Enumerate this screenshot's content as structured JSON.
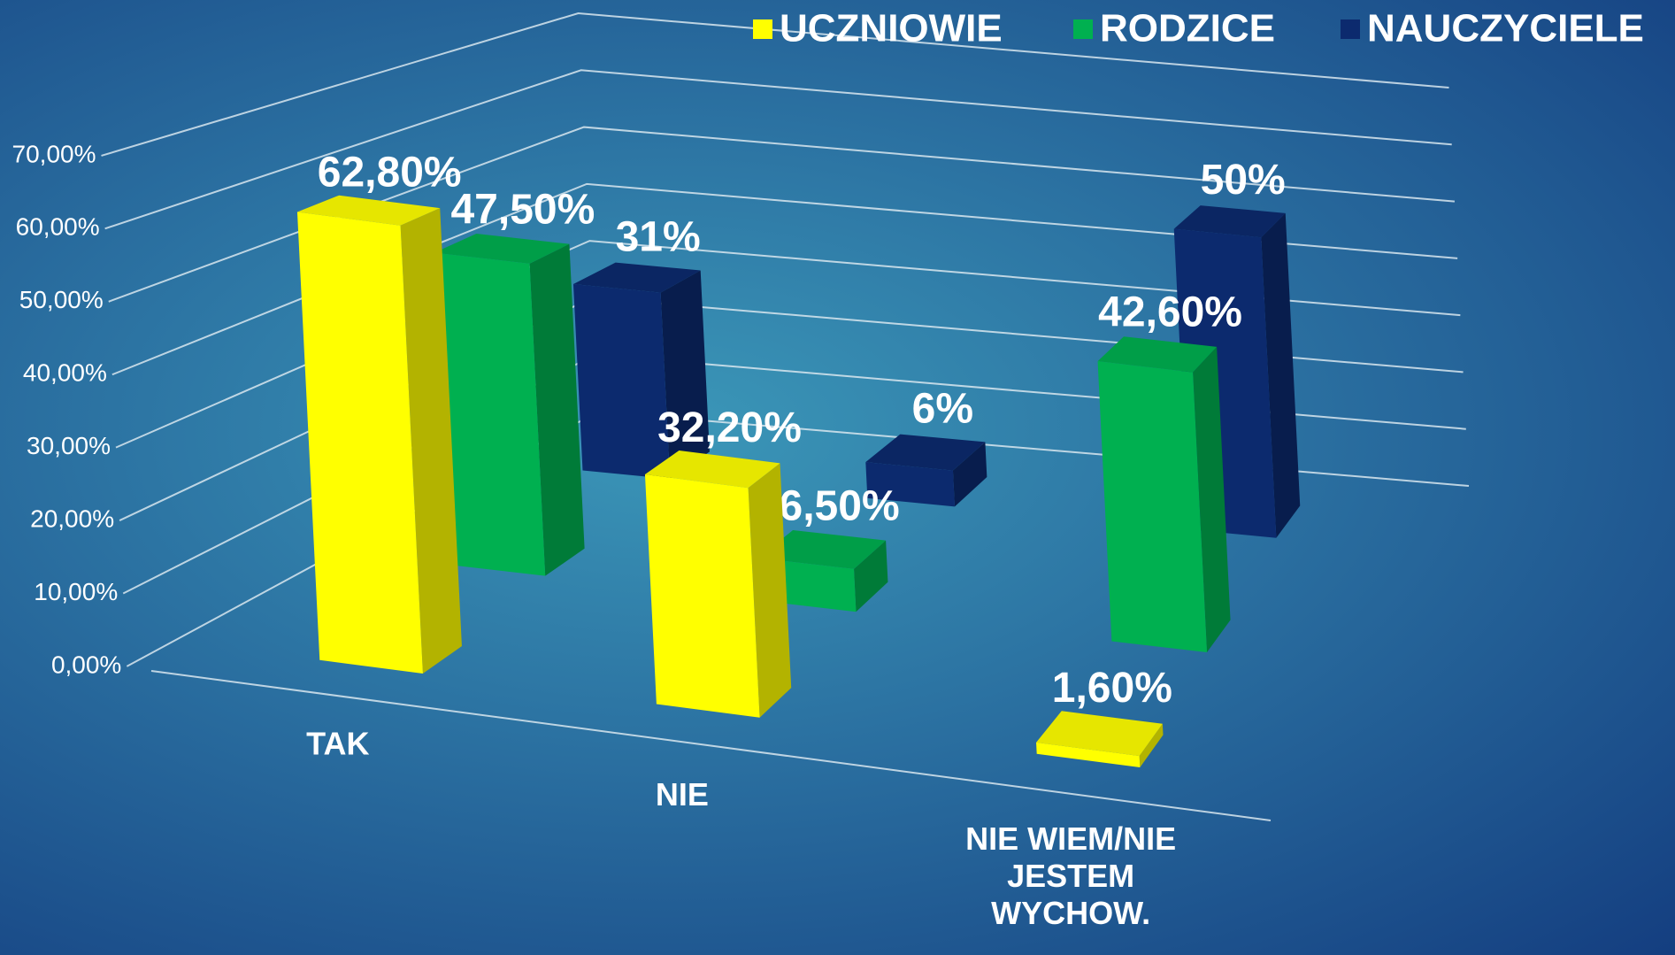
{
  "chart_data": {
    "type": "bar3d",
    "categories": [
      "TAK",
      "NIE",
      "NIE WIEM/NIE JESTEM WYCHOW."
    ],
    "series": [
      {
        "name": "UCZNIOWIE",
        "color": "#ffff00",
        "values": [
          62.8,
          32.2,
          1.6
        ],
        "value_labels": [
          "62,80%",
          "32,20%",
          "1,60%"
        ]
      },
      {
        "name": "RODZICE",
        "color": "#00b050",
        "values": [
          47.5,
          6.5,
          42.6
        ],
        "value_labels": [
          "47,50%",
          "6,50%",
          "42,60%"
        ]
      },
      {
        "name": "NAUCZYCIELE",
        "color": "#0c2a6e",
        "values": [
          31,
          6,
          50
        ],
        "value_labels": [
          "31%",
          "6%",
          "50%"
        ]
      }
    ],
    "ylim": [
      0,
      70
    ],
    "yticks": [
      {
        "value": 0,
        "label": "0,00%"
      },
      {
        "value": 10,
        "label": "10,00%"
      },
      {
        "value": 20,
        "label": "20,00%"
      },
      {
        "value": 30,
        "label": "30,00%"
      },
      {
        "value": 40,
        "label": "40,00%"
      },
      {
        "value": 50,
        "label": "50,00%"
      },
      {
        "value": 60,
        "label": "60,00%"
      },
      {
        "value": 70,
        "label": "70,00%"
      }
    ],
    "grid": true,
    "legend": "top-right"
  }
}
